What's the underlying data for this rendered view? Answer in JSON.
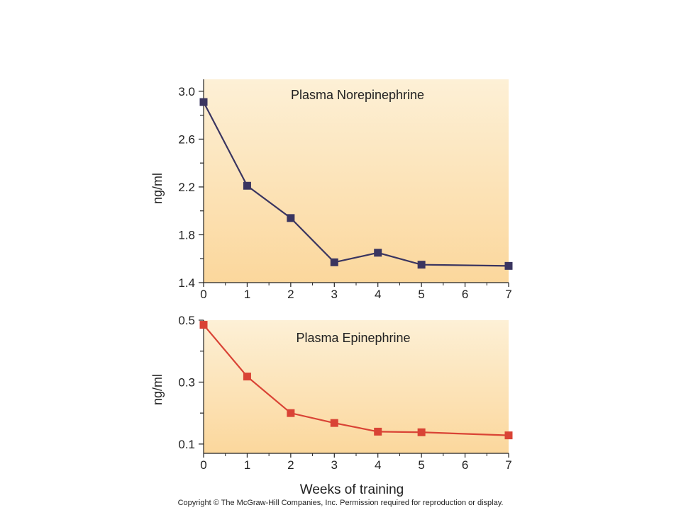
{
  "chart_data": [
    {
      "type": "line",
      "title": "Plasma Norepinephrine",
      "xlabel": "Weeks of training",
      "ylabel": "ng/ml",
      "x": [
        0,
        1,
        2,
        3,
        4,
        5,
        7
      ],
      "x_ticks": [
        0,
        1,
        2,
        3,
        4,
        5,
        6,
        7
      ],
      "y_ticks": [
        1.4,
        1.8,
        2.2,
        2.6,
        3.0
      ],
      "xlim": [
        0,
        7
      ],
      "ylim": [
        1.4,
        3.1
      ],
      "grid": false,
      "marker": "square",
      "series": [
        {
          "values": [
            2.91,
            2.21,
            1.94,
            1.57,
            1.65,
            1.55,
            1.54
          ]
        }
      ]
    },
    {
      "type": "line",
      "title": "Plasma Epinephrine",
      "xlabel": "Weeks of training",
      "ylabel": "ng/ml",
      "x": [
        0,
        1,
        2,
        3,
        4,
        5,
        7
      ],
      "x_ticks": [
        0,
        1,
        2,
        3,
        4,
        5,
        6,
        7
      ],
      "y_ticks": [
        0.1,
        0.3,
        0.5
      ],
      "xlim": [
        0,
        7
      ],
      "ylim": [
        0.07,
        0.5
      ],
      "grid": false,
      "marker": "square",
      "series": [
        {
          "values": [
            0.485,
            0.318,
            0.2,
            0.168,
            0.14,
            0.138,
            0.128
          ]
        }
      ]
    }
  ],
  "xlabel": "Weeks of training",
  "copyright": "Copyright © The McGraw-Hill Companies, Inc. Permission required for reproduction or display.",
  "colors": {
    "norepinephrine": "#3a3560",
    "epinephrine": "#d94335",
    "panel_top": "#fdf0d6",
    "panel_bottom": "#fbd79c",
    "axis": "#222222"
  }
}
